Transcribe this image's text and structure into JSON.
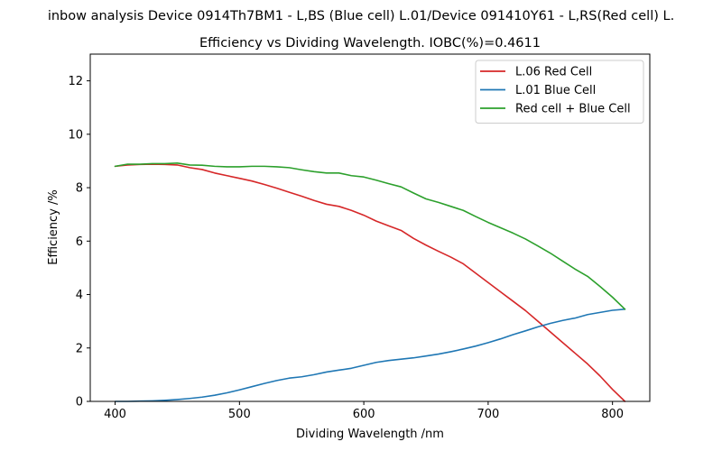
{
  "chart_data": {
    "type": "line",
    "title_line1": "inbow analysis Device 0914Th7BM1 - L,BS (Blue cell) L.01/Device 091410Y61 - L,RS(Red cell) L.",
    "title_line2": "Efficiency vs Dividing Wavelength. IOBC(%)=0.4611",
    "xlabel": "Dividing Wavelength /nm",
    "ylabel": "Efficiency /%",
    "xlim": [
      380,
      830
    ],
    "ylim": [
      0,
      13
    ],
    "xticks": [
      400,
      500,
      600,
      700,
      800
    ],
    "yticks": [
      0,
      2,
      4,
      6,
      8,
      10,
      12
    ],
    "grid": false,
    "legend_position": "top-right",
    "series": [
      {
        "name": "L.06 Red Cell",
        "color": "#d62728",
        "x": [
          400,
          410,
          420,
          430,
          440,
          450,
          460,
          470,
          480,
          490,
          500,
          510,
          520,
          530,
          540,
          550,
          560,
          570,
          580,
          590,
          600,
          610,
          620,
          630,
          640,
          650,
          660,
          670,
          680,
          690,
          700,
          710,
          720,
          730,
          740,
          750,
          760,
          770,
          780,
          790,
          800,
          810
        ],
        "y": [
          8.8,
          8.85,
          8.87,
          8.88,
          8.87,
          8.85,
          8.75,
          8.68,
          8.55,
          8.45,
          8.35,
          8.25,
          8.12,
          7.98,
          7.83,
          7.68,
          7.52,
          7.38,
          7.3,
          7.15,
          6.97,
          6.75,
          6.57,
          6.4,
          6.1,
          5.85,
          5.62,
          5.4,
          5.15,
          4.8,
          4.45,
          4.1,
          3.75,
          3.4,
          3.0,
          2.6,
          2.2,
          1.8,
          1.4,
          0.95,
          0.45,
          0.0
        ]
      },
      {
        "name": "L.01 Blue Cell",
        "color": "#1f77b4",
        "x": [
          400,
          410,
          420,
          430,
          440,
          450,
          460,
          470,
          480,
          490,
          500,
          510,
          520,
          530,
          540,
          550,
          560,
          570,
          580,
          590,
          600,
          610,
          620,
          630,
          640,
          650,
          660,
          670,
          680,
          690,
          700,
          710,
          720,
          730,
          740,
          750,
          760,
          770,
          780,
          790,
          800,
          810
        ],
        "y": [
          0.0,
          0.0,
          0.01,
          0.02,
          0.04,
          0.07,
          0.11,
          0.16,
          0.23,
          0.32,
          0.43,
          0.55,
          0.67,
          0.78,
          0.87,
          0.92,
          1.0,
          1.1,
          1.17,
          1.24,
          1.35,
          1.46,
          1.53,
          1.58,
          1.63,
          1.7,
          1.77,
          1.86,
          1.96,
          2.07,
          2.2,
          2.34,
          2.5,
          2.64,
          2.79,
          2.92,
          3.03,
          3.12,
          3.25,
          3.33,
          3.41,
          3.45
        ]
      },
      {
        "name": "Red cell + Blue Cell",
        "color": "#2ca02c",
        "x": [
          400,
          410,
          420,
          430,
          440,
          450,
          460,
          470,
          480,
          490,
          500,
          510,
          520,
          530,
          540,
          550,
          560,
          570,
          580,
          590,
          600,
          610,
          620,
          630,
          640,
          650,
          660,
          670,
          680,
          690,
          700,
          710,
          720,
          730,
          740,
          750,
          760,
          770,
          780,
          790,
          800,
          810
        ],
        "y": [
          8.8,
          8.88,
          8.88,
          8.9,
          8.9,
          8.92,
          8.85,
          8.84,
          8.8,
          8.78,
          8.78,
          8.8,
          8.8,
          8.78,
          8.75,
          8.67,
          8.6,
          8.55,
          8.55,
          8.45,
          8.4,
          8.28,
          8.15,
          8.03,
          7.8,
          7.58,
          7.45,
          7.3,
          7.15,
          6.92,
          6.7,
          6.5,
          6.3,
          6.08,
          5.82,
          5.55,
          5.25,
          4.95,
          4.68,
          4.3,
          3.9,
          3.45
        ]
      }
    ]
  }
}
